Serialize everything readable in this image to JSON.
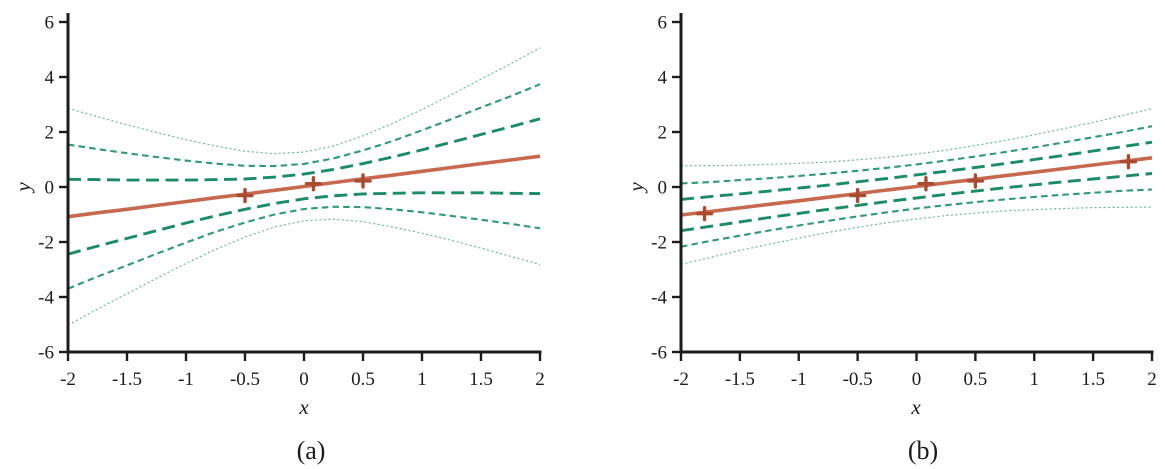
{
  "colors": {
    "background": "#ffffff",
    "axis": "#1c1c1c",
    "regression_line": "#c7694f",
    "data_marker": "#aa4b31",
    "band_inner": "#1b8c68",
    "band_middle": "#2e9b76",
    "band_outer": "#6fbd98"
  },
  "chart_data": [
    {
      "type": "line",
      "caption": "(a)",
      "xlabel": "x",
      "ylabel": "y",
      "xlim": [
        -2,
        2
      ],
      "ylim": [
        -6,
        6
      ],
      "grid": false,
      "legend": "none",
      "x_ticks": [
        "-2",
        "-1.5",
        "-1",
        "-0.5",
        "0",
        "0.5",
        "1",
        "1.5",
        "2"
      ],
      "y_ticks": [
        "6",
        "4",
        "2",
        "0",
        "-2",
        "-4",
        "-6"
      ],
      "x": [
        -2,
        -1.75,
        -1.5,
        -1.25,
        -1,
        -0.75,
        -0.5,
        -0.25,
        0,
        0.25,
        0.5,
        0.75,
        1,
        1.25,
        1.5,
        1.75,
        2
      ],
      "series": [
        {
          "name": "outer-band-upper",
          "color": "band_outer",
          "line_style": "dot",
          "values": [
            2.86,
            2.56,
            2.26,
            1.98,
            1.72,
            1.49,
            1.3,
            1.21,
            1.27,
            1.49,
            1.86,
            2.31,
            2.82,
            3.36,
            3.92,
            4.48,
            5.06
          ]
        },
        {
          "name": "outer-band-lower",
          "color": "band_outer",
          "line_style": "dot",
          "values": [
            -5.02,
            -4.44,
            -3.88,
            -3.32,
            -2.78,
            -2.27,
            -1.82,
            -1.45,
            -1.23,
            -1.17,
            -1.26,
            -1.45,
            -1.68,
            -1.94,
            -2.22,
            -2.52,
            -2.82
          ]
        },
        {
          "name": "middle-band-upper",
          "color": "band_middle",
          "line_style": "dash",
          "values": [
            1.54,
            1.38,
            1.23,
            1.09,
            0.96,
            0.85,
            0.77,
            0.76,
            0.84,
            1.04,
            1.33,
            1.67,
            2.06,
            2.47,
            2.89,
            3.3,
            3.74
          ]
        },
        {
          "name": "middle-band-lower",
          "color": "band_middle",
          "line_style": "dash",
          "values": [
            -3.7,
            -3.26,
            -2.85,
            -2.43,
            -2.02,
            -1.63,
            -1.29,
            -1.0,
            -0.8,
            -0.72,
            -0.73,
            -0.81,
            -0.92,
            -1.05,
            -1.19,
            -1.34,
            -1.5
          ]
        },
        {
          "name": "inner-band-upper",
          "color": "band_inner",
          "line_style": "long-dash",
          "values": [
            0.28,
            0.27,
            0.25,
            0.25,
            0.25,
            0.27,
            0.29,
            0.36,
            0.47,
            0.64,
            0.85,
            1.09,
            1.35,
            1.63,
            1.91,
            2.19,
            2.48
          ]
        },
        {
          "name": "inner-band-lower",
          "color": "band_inner",
          "line_style": "long-dash",
          "values": [
            -2.44,
            -2.15,
            -1.87,
            -1.59,
            -1.31,
            -1.05,
            -0.81,
            -0.6,
            -0.43,
            -0.32,
            -0.25,
            -0.23,
            -0.21,
            -0.21,
            -0.21,
            -0.23,
            -0.24
          ]
        },
        {
          "name": "regression-line",
          "color": "regression_line",
          "line_style": "solid",
          "values": [
            -1.08,
            -0.94,
            -0.81,
            -0.67,
            -0.53,
            -0.39,
            -0.26,
            -0.12,
            0.02,
            0.16,
            0.3,
            0.43,
            0.57,
            0.71,
            0.85,
            0.98,
            1.12
          ]
        }
      ],
      "points": [
        {
          "x": -0.5,
          "y": -0.31
        },
        {
          "x": 0.08,
          "y": 0.12
        },
        {
          "x": 0.5,
          "y": 0.22
        }
      ]
    },
    {
      "type": "line",
      "caption": "(b)",
      "xlabel": "x",
      "ylabel": "y",
      "xlim": [
        -2,
        2
      ],
      "ylim": [
        -6,
        6
      ],
      "grid": false,
      "legend": "none",
      "x_ticks": [
        "-2",
        "-1.5",
        "-1",
        "-0.5",
        "0",
        "0.5",
        "1",
        "1.5",
        "2"
      ],
      "y_ticks": [
        "6",
        "4",
        "2",
        "0",
        "-2",
        "-4",
        "-6"
      ],
      "x": [
        -2,
        -1.75,
        -1.5,
        -1.25,
        -1,
        -0.75,
        -0.5,
        -0.25,
        0,
        0.25,
        0.5,
        0.75,
        1,
        1.25,
        1.5,
        1.75,
        2
      ],
      "series": [
        {
          "name": "outer-band-upper",
          "color": "band_outer",
          "line_style": "dot",
          "values": [
            0.77,
            0.78,
            0.79,
            0.82,
            0.86,
            0.91,
            0.99,
            1.08,
            1.2,
            1.34,
            1.51,
            1.69,
            1.9,
            2.12,
            2.35,
            2.6,
            2.85
          ]
        },
        {
          "name": "outer-band-lower",
          "color": "band_outer",
          "line_style": "dot",
          "values": [
            -2.81,
            -2.56,
            -2.31,
            -2.08,
            -1.86,
            -1.65,
            -1.47,
            -1.3,
            -1.16,
            -1.04,
            -0.95,
            -0.87,
            -0.82,
            -0.78,
            -0.75,
            -0.74,
            -0.73
          ]
        },
        {
          "name": "middle-band-upper",
          "color": "band_middle",
          "line_style": "dash",
          "values": [
            0.13,
            0.18,
            0.25,
            0.32,
            0.4,
            0.49,
            0.59,
            0.7,
            0.82,
            0.96,
            1.11,
            1.27,
            1.44,
            1.62,
            1.81,
            2.0,
            2.21
          ]
        },
        {
          "name": "middle-band-lower",
          "color": "band_middle",
          "line_style": "dash",
          "values": [
            -2.17,
            -1.96,
            -1.77,
            -1.58,
            -1.4,
            -1.23,
            -1.07,
            -0.92,
            -0.78,
            -0.66,
            -0.55,
            -0.45,
            -0.36,
            -0.28,
            -0.21,
            -0.14,
            -0.09
          ]
        },
        {
          "name": "inner-band-upper",
          "color": "band_inner",
          "line_style": "long-dash",
          "values": [
            -0.45,
            -0.35,
            -0.25,
            -0.15,
            -0.04,
            0.07,
            0.19,
            0.31,
            0.44,
            0.57,
            0.71,
            0.85,
            1.0,
            1.15,
            1.31,
            1.47,
            1.63
          ]
        },
        {
          "name": "inner-band-lower",
          "color": "band_inner",
          "line_style": "long-dash",
          "values": [
            -1.59,
            -1.43,
            -1.27,
            -1.11,
            -0.96,
            -0.81,
            -0.67,
            -0.53,
            -0.4,
            -0.27,
            -0.15,
            -0.03,
            0.08,
            0.19,
            0.29,
            0.39,
            0.49
          ]
        },
        {
          "name": "regression-line",
          "color": "regression_line",
          "line_style": "solid",
          "values": [
            -1.02,
            -0.89,
            -0.76,
            -0.63,
            -0.5,
            -0.37,
            -0.24,
            -0.11,
            0.02,
            0.15,
            0.28,
            0.41,
            0.54,
            0.67,
            0.8,
            0.93,
            1.06
          ]
        }
      ],
      "points": [
        {
          "x": -1.8,
          "y": -0.97
        },
        {
          "x": -0.5,
          "y": -0.31
        },
        {
          "x": 0.08,
          "y": 0.12
        },
        {
          "x": 0.5,
          "y": 0.22
        },
        {
          "x": 1.8,
          "y": 0.92
        }
      ]
    }
  ]
}
